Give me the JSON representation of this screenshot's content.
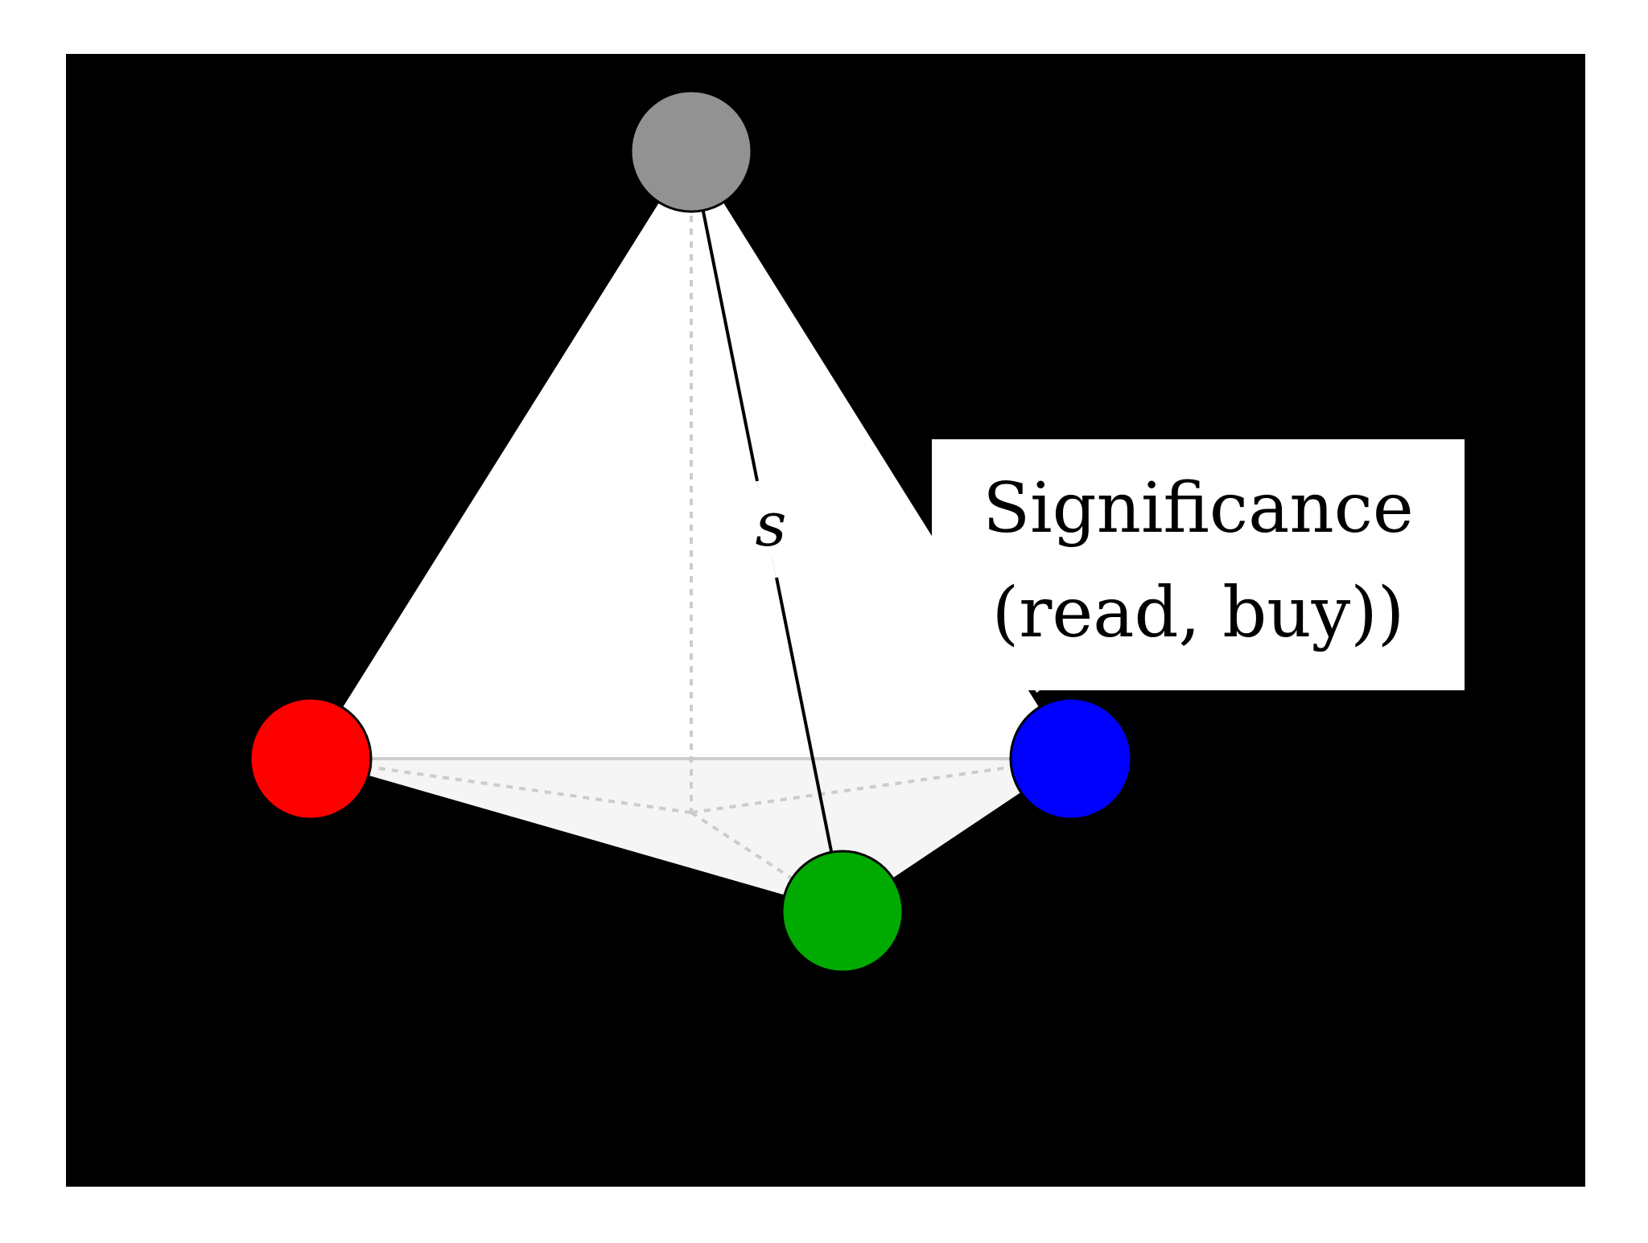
{
  "diagram": {
    "edge_label": "s",
    "callout": {
      "line1": "Significance",
      "line2": "(read, buy))"
    },
    "colors": {
      "background_panel": "#000000",
      "page": "#ffffff",
      "face": "#ffffff",
      "base_face": "#f5f5f5",
      "hidden_edge": "#cccccc",
      "apex_node": "#929292",
      "left_node": "#ff0000",
      "front_node": "#00aa00",
      "right_node": "#0000ff",
      "highlight_edge": "#000000"
    },
    "nodes": [
      {
        "id": "apex",
        "color_name": "gray"
      },
      {
        "id": "left",
        "color_name": "red"
      },
      {
        "id": "front",
        "color_name": "green"
      },
      {
        "id": "right",
        "color_name": "blue"
      }
    ]
  }
}
